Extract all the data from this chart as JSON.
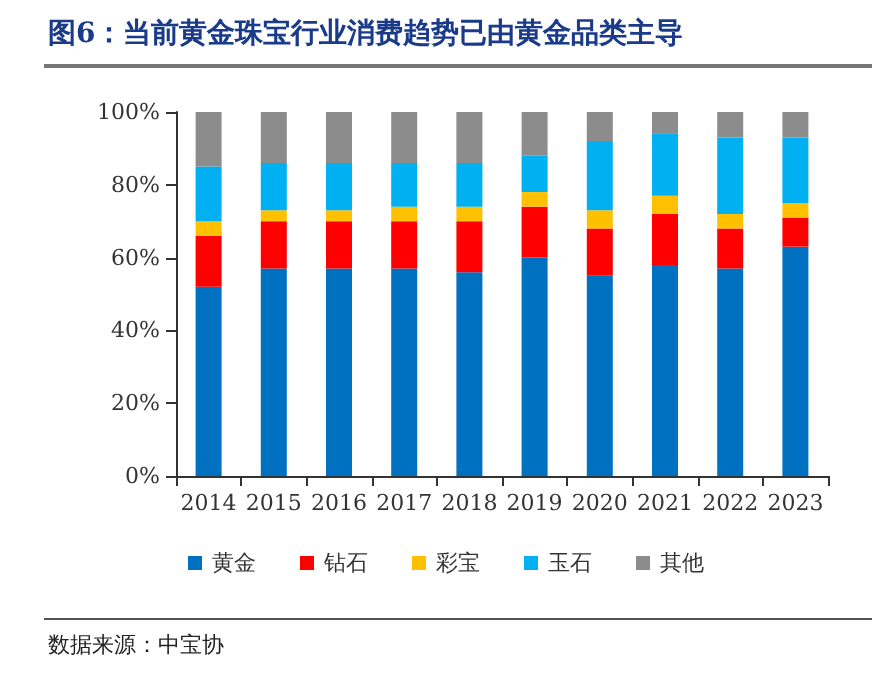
{
  "chart_data": {
    "type": "bar",
    "stacked": true,
    "title": "图6：当前黄金珠宝行业消费趋势已由黄金品类主导",
    "annotations": [
      "数据来源：中宝协"
    ],
    "categories": [
      "2014",
      "2015",
      "2016",
      "2017",
      "2018",
      "2019",
      "2020",
      "2021",
      "2022",
      "2023"
    ],
    "series": [
      {
        "name": "黄金",
        "color": "#0070c0",
        "values": [
          52,
          57,
          57,
          57,
          56,
          60,
          55,
          58,
          57,
          63
        ]
      },
      {
        "name": "钻石",
        "color": "#ff0000",
        "values": [
          14,
          13,
          13,
          13,
          14,
          14,
          13,
          14,
          11,
          8
        ]
      },
      {
        "name": "彩宝",
        "color": "#ffc000",
        "values": [
          4,
          3,
          3,
          4,
          4,
          4,
          5,
          5,
          4,
          4
        ]
      },
      {
        "name": "玉石",
        "color": "#00b0f0",
        "values": [
          15,
          13,
          13,
          12,
          12,
          10,
          19,
          17,
          21,
          18
        ]
      },
      {
        "name": "其他",
        "color": "#8c8c8c",
        "values": [
          15,
          14,
          14,
          14,
          14,
          12,
          8,
          6,
          7,
          7
        ]
      }
    ],
    "ylim": [
      0,
      100
    ],
    "yticks": [
      {
        "value": 0,
        "label": "0%"
      },
      {
        "value": 20,
        "label": "20%"
      },
      {
        "value": 40,
        "label": "40%"
      },
      {
        "value": 60,
        "label": "60%"
      },
      {
        "value": 80,
        "label": "80%"
      },
      {
        "value": 100,
        "label": "100%"
      }
    ],
    "grid": false,
    "legend": "bottom"
  }
}
